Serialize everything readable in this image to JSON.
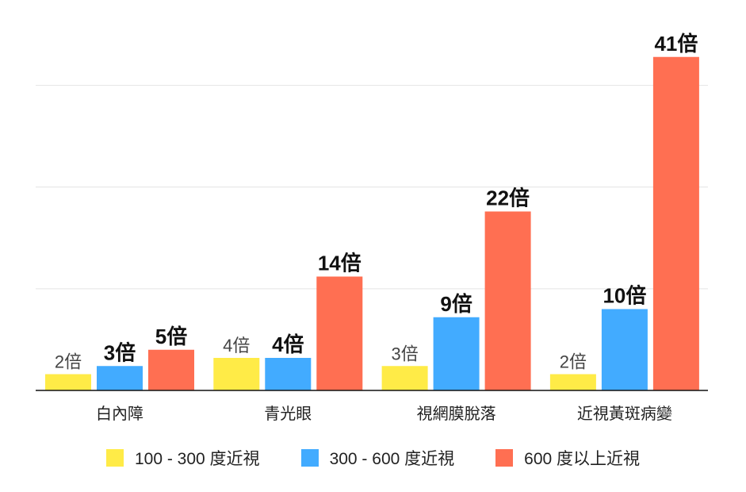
{
  "chart_data": {
    "type": "bar",
    "title": "",
    "xlabel": "",
    "ylabel": "",
    "ylim": [
      0,
      45
    ],
    "grid": true,
    "gridlines": [
      12.5,
      25,
      37.5
    ],
    "legend_position": "bottom",
    "categories": [
      "白內障",
      "青光眼",
      "視網膜脫落",
      "近視黃斑病變"
    ],
    "series": [
      {
        "name": "100 - 300 度近視",
        "color": "#FFEB47",
        "values": [
          2,
          4,
          3,
          2
        ],
        "labels": [
          "2倍",
          "4倍",
          "3倍",
          "2倍"
        ],
        "label_weight": "light"
      },
      {
        "name": "300 - 600 度近視",
        "color": "#42ABFF",
        "values": [
          3,
          4,
          9,
          10
        ],
        "labels": [
          "3倍",
          "4倍",
          "9倍",
          "10倍"
        ],
        "label_weight": "bold"
      },
      {
        "name": "600 度以上近視",
        "color": "#FF6F52",
        "values": [
          5,
          14,
          22,
          41
        ],
        "labels": [
          "5倍",
          "14倍",
          "22倍",
          "41倍"
        ],
        "label_weight": "bold"
      }
    ]
  }
}
